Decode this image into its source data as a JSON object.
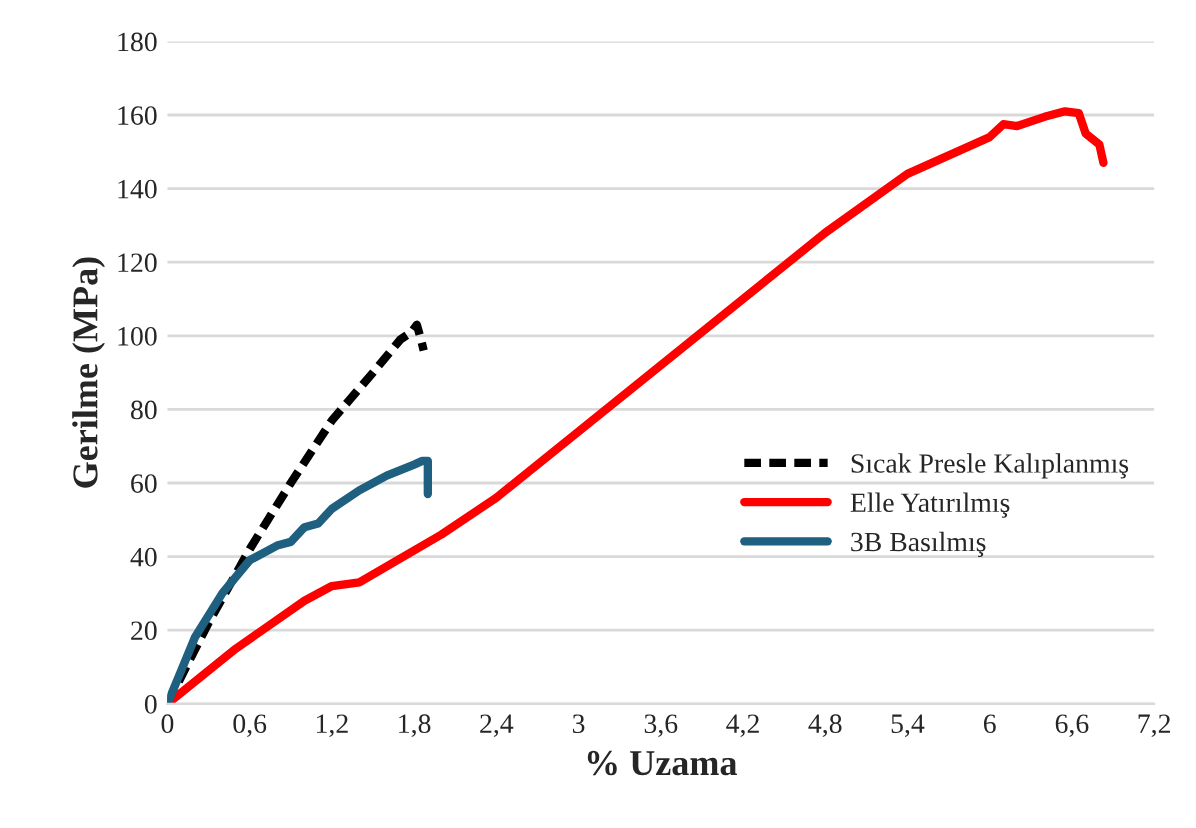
{
  "chart_data": {
    "type": "line",
    "xlabel": "% Uzama",
    "ylabel": "Gerilme (MPa)",
    "xlim": [
      0,
      7.2
    ],
    "ylim": [
      0,
      180
    ],
    "xticks": [
      0,
      {
        "value": 0.6,
        "label": "0,6"
      },
      {
        "value": 1.2,
        "label": "1,2"
      },
      {
        "value": 1.8,
        "label": "1,8"
      },
      {
        "value": 2.4,
        "label": "2,4"
      },
      3,
      {
        "value": 3.6,
        "label": "3,6"
      },
      {
        "value": 4.2,
        "label": "4,2"
      },
      {
        "value": 4.8,
        "label": "4,8"
      },
      {
        "value": 5.4,
        "label": "5,4"
      },
      6,
      {
        "value": 6.6,
        "label": "6,6"
      },
      {
        "value": 7.2,
        "label": "7,2"
      }
    ],
    "yticks": [
      0,
      20,
      40,
      60,
      80,
      100,
      120,
      140,
      160,
      180
    ],
    "grid": "y",
    "legend": "right",
    "series": [
      {
        "name": "Sıcak Presle Kalıplanmış",
        "color": "#000000",
        "line_style": "dashed",
        "x": [
          0,
          0.3,
          0.6,
          0.9,
          1.2,
          1.5,
          1.7,
          1.78,
          1.82,
          1.85,
          1.87
        ],
        "values": [
          0,
          22,
          42,
          60,
          77,
          90,
          99,
          101,
          103,
          99,
          96
        ]
      },
      {
        "name": "Elle Yatırılmış",
        "color": "#ff0000",
        "line_style": "solid",
        "x": [
          0,
          0.5,
          1.0,
          1.2,
          1.4,
          2.0,
          2.4,
          3.0,
          3.6,
          4.2,
          4.8,
          5.4,
          6.0,
          6.1,
          6.2,
          6.4,
          6.55,
          6.65,
          6.7,
          6.8,
          6.83
        ],
        "values": [
          0,
          15,
          28,
          32,
          33,
          46,
          56,
          74,
          92,
          110,
          128,
          144,
          154,
          157.5,
          157,
          159.5,
          161,
          160.5,
          155,
          152,
          147
        ]
      },
      {
        "name": "3B Basılmış",
        "color": "#1f5f80",
        "line_style": "solid",
        "x": [
          0,
          0.2,
          0.4,
          0.6,
          0.8,
          0.9,
          1.0,
          1.1,
          1.2,
          1.4,
          1.6,
          1.8,
          1.86,
          1.9,
          1.9
        ],
        "values": [
          0,
          18,
          30,
          39,
          43,
          44,
          48,
          49,
          53,
          58,
          62,
          65,
          66,
          66,
          57
        ]
      }
    ]
  }
}
